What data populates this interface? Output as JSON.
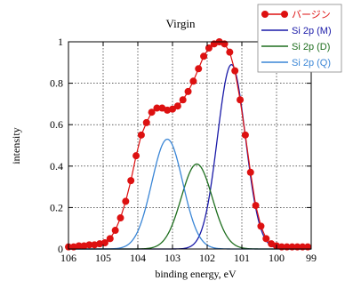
{
  "chart_data": {
    "type": "line",
    "title": "Virgin",
    "xlabel": "binding energy,  eV",
    "ylabel": "intensity",
    "xlim": [
      106,
      99
    ],
    "ylim": [
      0,
      1
    ],
    "x_reversed": true,
    "grid": "dotted",
    "legend_placement": "top-right",
    "x_ticks": [
      106,
      105,
      104,
      103,
      102,
      101,
      100,
      99
    ],
    "x_tick_labels": [
      "106",
      "105",
      "104",
      "103",
      "102",
      "101",
      "100",
      "99"
    ],
    "y_ticks": [
      0,
      0.2,
      0.4,
      0.6,
      0.8,
      1
    ],
    "y_tick_labels": [
      "0",
      "0.2",
      "0.4",
      "0.6",
      "0.8",
      "1"
    ],
    "series": [
      {
        "name": "バージン",
        "style": "line+markers",
        "color": "#dd1111",
        "x": [
          106.0,
          105.85,
          105.7,
          105.55,
          105.4,
          105.25,
          105.1,
          104.95,
          104.8,
          104.65,
          104.5,
          104.35,
          104.2,
          104.05,
          103.9,
          103.75,
          103.6,
          103.45,
          103.3,
          103.15,
          103.0,
          102.85,
          102.7,
          102.55,
          102.4,
          102.25,
          102.1,
          101.95,
          101.8,
          101.65,
          101.5,
          101.35,
          101.2,
          101.05,
          100.9,
          100.75,
          100.6,
          100.45,
          100.3,
          100.15,
          100.0,
          99.85,
          99.7,
          99.55,
          99.4,
          99.25,
          99.1
        ],
        "y": [
          0.01,
          0.01,
          0.015,
          0.015,
          0.02,
          0.02,
          0.025,
          0.03,
          0.05,
          0.09,
          0.15,
          0.23,
          0.33,
          0.45,
          0.55,
          0.61,
          0.66,
          0.68,
          0.68,
          0.67,
          0.675,
          0.69,
          0.72,
          0.76,
          0.81,
          0.87,
          0.93,
          0.97,
          0.99,
          1.0,
          0.99,
          0.95,
          0.86,
          0.72,
          0.55,
          0.37,
          0.21,
          0.11,
          0.05,
          0.025,
          0.015,
          0.01,
          0.01,
          0.01,
          0.01,
          0.01,
          0.01
        ]
      },
      {
        "name": "Si 2p (M)",
        "style": "line",
        "color": "#1a1aa8",
        "center": 101.3,
        "height": 0.89,
        "fwhm": 0.95
      },
      {
        "name": "Si 2p (D)",
        "style": "line",
        "color": "#1e6e1e",
        "center": 102.3,
        "height": 0.41,
        "fwhm": 1.05
      },
      {
        "name": "Si 2p (Q)",
        "style": "line",
        "color": "#3a86d6",
        "center": 103.15,
        "height": 0.53,
        "fwhm": 1.05
      }
    ]
  }
}
